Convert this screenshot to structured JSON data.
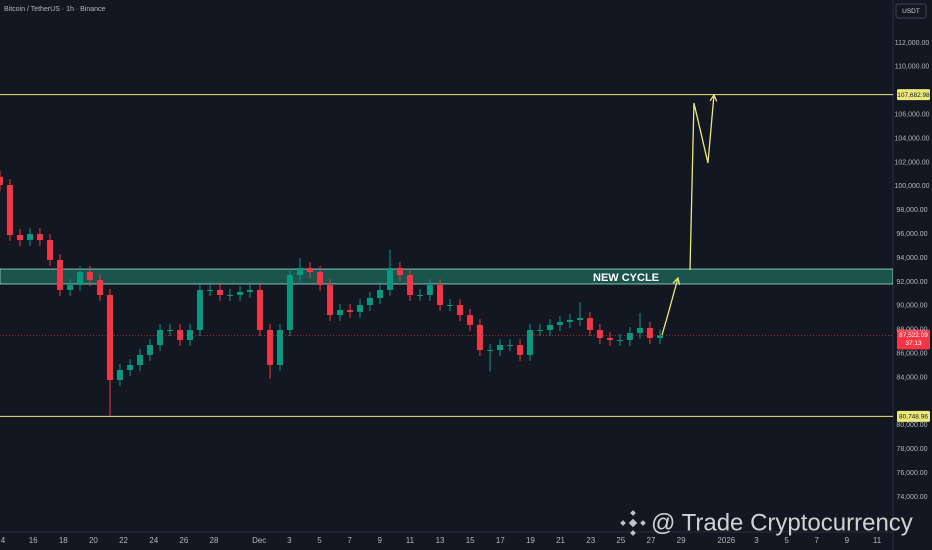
{
  "chart_data": {
    "type": "candlestick",
    "title": "Bitcoin / TetherUS · 1h · Binance",
    "currency": "USDT",
    "up_color": "#089981",
    "down_color": "#f23645",
    "x": [
      -0.2,
      0.46,
      1.13,
      1.79,
      2.45,
      3.12,
      3.78,
      4.45,
      5.11,
      5.77,
      6.44,
      7.1,
      7.76,
      8.43,
      9.09,
      9.75,
      10.42,
      11.08,
      11.75,
      12.41,
      13.07,
      13.74,
      14.4,
      15.06,
      15.73,
      16.39,
      17.05,
      17.72,
      18.38,
      19.04,
      19.71,
      20.37,
      21.04,
      21.7,
      22.36,
      23.03,
      23.69,
      24.35,
      25.02,
      25.68,
      26.34,
      27.01,
      27.67,
      28.33,
      29,
      29.66,
      30.33,
      30.99,
      31.65,
      32.32,
      32.98,
      33.64,
      34.31,
      34.97,
      35.63,
      36.3,
      36.96,
      37.62,
      38.29,
      38.95,
      39.61,
      40.28,
      40.94,
      41.6,
      42.27,
      42.93,
      43.6
    ],
    "open": [
      100800,
      100110,
      95930,
      95510,
      96010,
      95510,
      93840,
      91330,
      91740,
      92830,
      92160,
      90910,
      83790,
      84630,
      85050,
      85890,
      86720,
      87980,
      87980,
      87140,
      87980,
      91330,
      91330,
      90910,
      90910,
      91160,
      91330,
      87980,
      85050,
      87980,
      92580,
      93170,
      92830,
      91740,
      89230,
      89650,
      89490,
      90070,
      90660,
      91330,
      93170,
      92580,
      90910,
      90910,
      91740,
      90070,
      90070,
      89230,
      88400,
      86300,
      86300,
      86720,
      86720,
      85890,
      87980,
      87980,
      88400,
      88650,
      88820,
      88980,
      87980,
      87310,
      87140,
      87140,
      87730,
      88150,
      87310
    ],
    "high": [
      101300,
      100610,
      96430,
      96510,
      96510,
      96010,
      94340,
      92240,
      93330,
      93330,
      92660,
      91410,
      85130,
      85550,
      86390,
      87220,
      88480,
      88480,
      88480,
      88480,
      91830,
      91830,
      91830,
      91410,
      91660,
      91830,
      91830,
      88480,
      88480,
      93080,
      94000,
      93670,
      93330,
      92240,
      90150,
      90150,
      90570,
      91160,
      91830,
      94700,
      93670,
      93080,
      91410,
      92240,
      92240,
      90570,
      90570,
      89730,
      88900,
      86800,
      87220,
      87220,
      87220,
      88480,
      88480,
      88900,
      89150,
      89320,
      90300,
      89480,
      88480,
      87810,
      87640,
      88230,
      89400,
      88650,
      88020
    ],
    "low": [
      99610,
      95430,
      95010,
      95010,
      95010,
      93340,
      90830,
      90830,
      91240,
      91660,
      90410,
      80800,
      83290,
      84130,
      84550,
      85390,
      86220,
      87480,
      86640,
      86640,
      87480,
      90830,
      90410,
      90410,
      90410,
      90660,
      87480,
      83900,
      84550,
      87480,
      92080,
      92330,
      91240,
      88730,
      88730,
      88990,
      88990,
      89570,
      90160,
      90830,
      92080,
      90410,
      90410,
      90410,
      89570,
      89570,
      88730,
      87900,
      85800,
      84500,
      85800,
      86220,
      85390,
      85390,
      87480,
      87480,
      87900,
      88150,
      88320,
      87480,
      86810,
      86640,
      86640,
      86640,
      87230,
      86810,
      86810
    ],
    "close": [
      100110,
      95930,
      95510,
      96010,
      95510,
      93840,
      91330,
      91740,
      92830,
      92160,
      90910,
      83790,
      84630,
      85050,
      85890,
      86720,
      87980,
      87980,
      87140,
      87980,
      91330,
      91330,
      90910,
      90910,
      91160,
      91330,
      87980,
      85050,
      87980,
      92580,
      93170,
      92830,
      91740,
      89230,
      89650,
      89490,
      90070,
      90660,
      91330,
      93170,
      92580,
      90910,
      90910,
      91740,
      90070,
      90070,
      89230,
      88400,
      86300,
      86300,
      86720,
      86720,
      85890,
      87980,
      87980,
      88400,
      88650,
      88820,
      88980,
      87980,
      87310,
      87140,
      87140,
      87730,
      88150,
      87310,
      87522.09
    ],
    "xlim": [
      -0.2,
      59.06
    ],
    "xticks": [
      {
        "value": 0,
        "label": "4"
      },
      {
        "value": 2,
        "label": "16"
      },
      {
        "value": 4,
        "label": "18"
      },
      {
        "value": 6,
        "label": "20"
      },
      {
        "value": 8,
        "label": "22"
      },
      {
        "value": 10,
        "label": "24"
      },
      {
        "value": 12,
        "label": "26"
      },
      {
        "value": 14,
        "label": "28"
      },
      {
        "value": 17,
        "label": "Dec"
      },
      {
        "value": 19,
        "label": "3"
      },
      {
        "value": 21,
        "label": "5"
      },
      {
        "value": 23,
        "label": "7"
      },
      {
        "value": 25,
        "label": "9"
      },
      {
        "value": 27,
        "label": "11"
      },
      {
        "value": 29,
        "label": "13"
      },
      {
        "value": 31,
        "label": "15"
      },
      {
        "value": 33,
        "label": "17"
      },
      {
        "value": 35,
        "label": "19"
      },
      {
        "value": 37,
        "label": "21"
      },
      {
        "value": 39,
        "label": "23"
      },
      {
        "value": 41,
        "label": "25"
      },
      {
        "value": 43,
        "label": "27"
      },
      {
        "value": 45,
        "label": "29"
      },
      {
        "value": 48,
        "label": "2026"
      },
      {
        "value": 50,
        "label": "3"
      },
      {
        "value": 52,
        "label": "5"
      },
      {
        "value": 54,
        "label": "7"
      },
      {
        "value": 56,
        "label": "9"
      },
      {
        "value": 58,
        "label": "11"
      }
    ],
    "ylim": [
      71070,
      115600
    ],
    "yticks": [
      {
        "value": 112000,
        "label": "112,000.00"
      },
      {
        "value": 110000,
        "label": "110,000.00"
      },
      {
        "value": 106000,
        "label": "106,000.00"
      },
      {
        "value": 104000,
        "label": "104,000.00"
      },
      {
        "value": 102000,
        "label": "102,000.00"
      },
      {
        "value": 100000,
        "label": "100,000.00"
      },
      {
        "value": 98000,
        "label": "98,000.00"
      },
      {
        "value": 96000,
        "label": "96,000.00"
      },
      {
        "value": 94000,
        "label": "94,000.00"
      },
      {
        "value": 92000,
        "label": "92,000.00"
      },
      {
        "value": 90000,
        "label": "90,000.00"
      },
      {
        "value": 88000,
        "label": "88,000.00"
      },
      {
        "value": 86000,
        "label": "86,000.00"
      },
      {
        "value": 84000,
        "label": "84,000.00"
      },
      {
        "value": 80000,
        "label": "80,000.00"
      },
      {
        "value": 78000,
        "label": "78,000.00"
      },
      {
        "value": 76000,
        "label": "76,000.00"
      },
      {
        "value": 74000,
        "label": "74,000.00"
      }
    ],
    "grid": false,
    "levels": [
      {
        "value": 107682.98,
        "label": "107,682.98",
        "color": "#ece97a"
      },
      {
        "value": 80748.96,
        "label": "80,748.96",
        "color": "#ece97a"
      }
    ],
    "zone": {
      "low": 91830,
      "high": 93080,
      "label": "NEW CYCLE",
      "color": "#1d5e55"
    },
    "last_price": {
      "value": 87522.09,
      "label": "87,522.09",
      "countdown": "37:13",
      "color": "#f23645"
    },
    "projection_color": "#ece97a",
    "projections": [
      {
        "x": [
          43.73,
          44.06,
          44.79
        ],
        "y": [
          87560,
          88980,
          92330
        ]
      },
      {
        "x": [
          45.59,
          45.85,
          46.78,
          47.18
        ],
        "y": [
          93000,
          106980,
          101960,
          107650
        ]
      }
    ],
    "watermark": "@ Trade Cryptocurrency"
  }
}
